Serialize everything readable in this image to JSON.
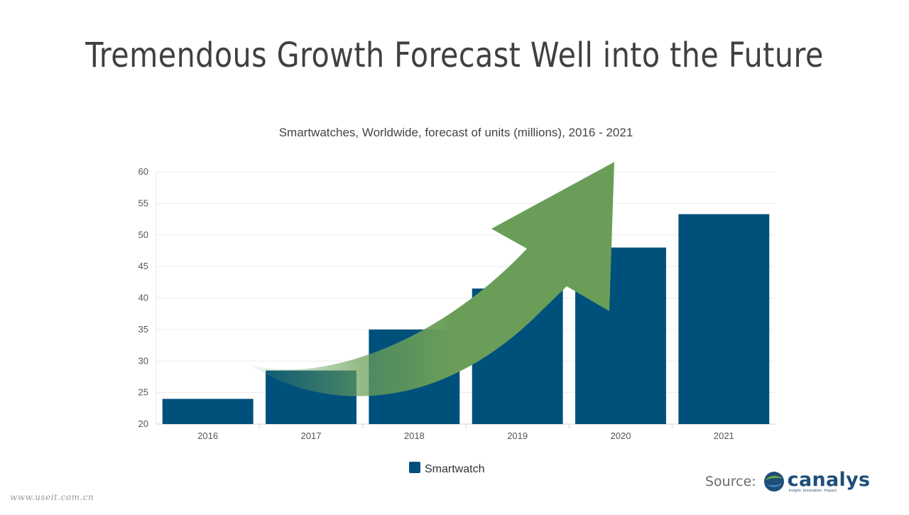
{
  "slide": {
    "title": "Tremendous Growth Forecast Well into the Future",
    "source_label": "Source:",
    "logo_word": "canalys",
    "logo_tagline": "Insight. Innovation. Impact.",
    "watermark": "www.useit.com.cn"
  },
  "colors": {
    "bar": "#00507c",
    "arrow": "#6a9e58",
    "title": "#404040",
    "logo": "#1f4e79"
  },
  "chart_data": {
    "type": "bar",
    "title": "Smartwatches, Worldwide, forecast of units (millions), 2016 - 2021",
    "xlabel": "",
    "ylabel": "",
    "categories": [
      "2016",
      "2017",
      "2018",
      "2019",
      "2020",
      "2021"
    ],
    "series": [
      {
        "name": "Smartwatch",
        "values": [
          24,
          28.5,
          35,
          41.5,
          48,
          53.3
        ]
      }
    ],
    "ylim": [
      20,
      60
    ],
    "yticks": [
      20,
      25,
      30,
      35,
      40,
      45,
      50,
      55,
      60
    ],
    "grid": true,
    "legend": "bottom-center",
    "annotation": "green upward growth arrow"
  }
}
